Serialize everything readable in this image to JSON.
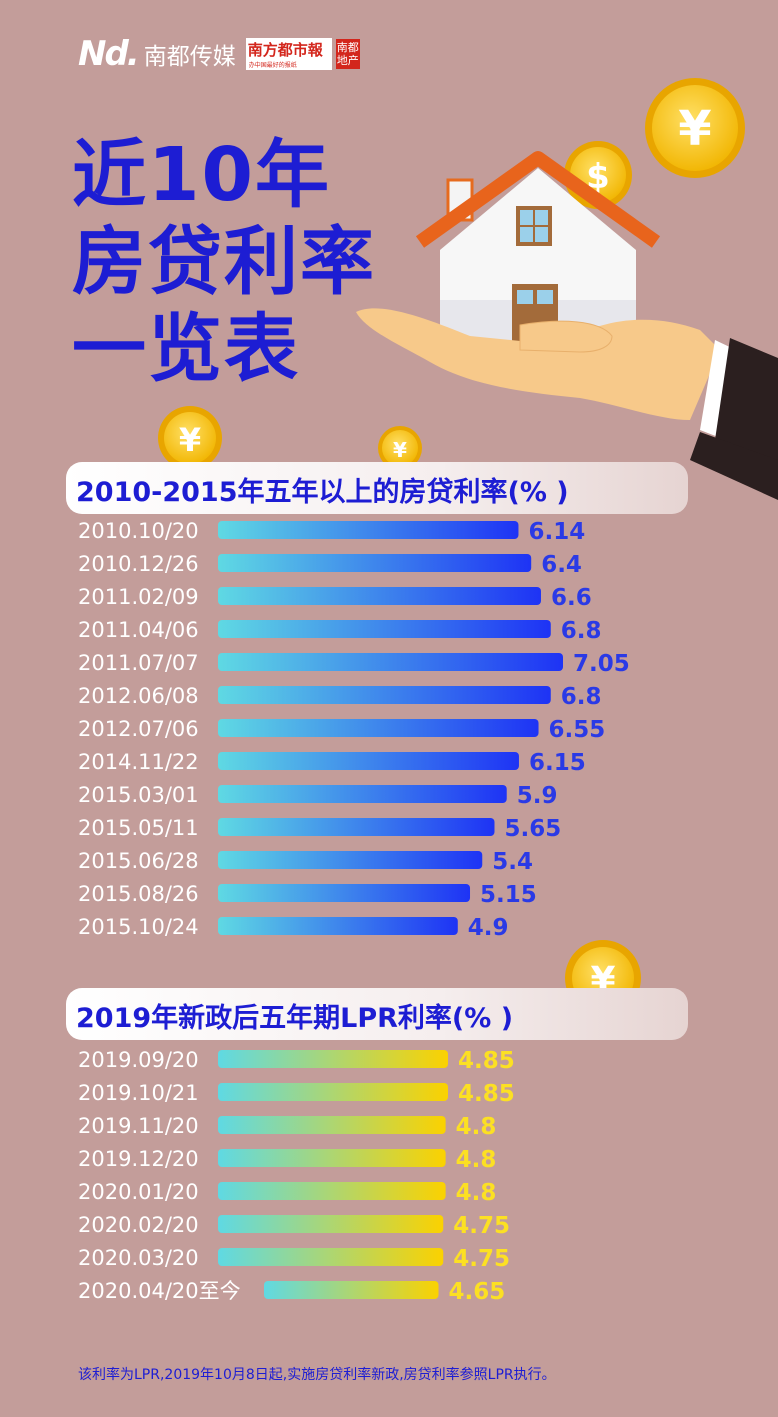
{
  "branding": {
    "nd_logo": "Nd.",
    "media_name": "南都传媒",
    "newspaper_name": "南方都市報",
    "newspaper_slogan": "办中国最好的报纸",
    "estate_seal": "南都地产"
  },
  "title": {
    "line1": "近10年",
    "line2": "房贷利率",
    "line3": "一览表"
  },
  "illustration": {
    "coin_symbols": [
      "¥",
      "$"
    ],
    "icons": [
      "house-icon",
      "hand-icon",
      "coin-icon"
    ]
  },
  "colors": {
    "title": "#1d1dd3",
    "background": "#c39d9a",
    "bar1_start": "#5fd9e3",
    "bar1_end": "#1e33f5",
    "bar2_start": "#5fd9e3",
    "bar2_end": "#fbd200",
    "value1": "#2a3ae6",
    "value2": "#fce023"
  },
  "chart_data": [
    {
      "type": "bar",
      "title": "2010-2015年五年以上的房贷利率(% )",
      "categories": [
        "2010.10/20",
        "2010.12/26",
        "2011.02/09",
        "2011.04/06",
        "2011.07/07",
        "2012.06/08",
        "2012.07/06",
        "2014.11/22",
        "2015.03/01",
        "2015.05/11",
        "2015.06/28",
        "2015.08/26",
        "2015.10/24"
      ],
      "values": [
        6.14,
        6.4,
        6.6,
        6.8,
        7.05,
        6.8,
        6.55,
        6.15,
        5.9,
        5.65,
        5.4,
        5.15,
        4.9
      ],
      "value_labels": [
        "6.14",
        "6.4",
        "6.6",
        "6.8",
        "7.05",
        "6.8",
        "6.55",
        "6.15",
        "5.9",
        "5.65",
        "5.4",
        "5.15",
        "4.9"
      ],
      "orientation": "horizontal"
    },
    {
      "type": "bar",
      "title": "2019年新政后五年期LPR利率(% )",
      "categories": [
        "2019.09/20",
        "2019.10/21",
        "2019.11/20",
        "2019.12/20",
        "2020.01/20",
        "2020.02/20",
        "2020.03/20",
        "2020.04/20至今"
      ],
      "values": [
        4.85,
        4.85,
        4.8,
        4.8,
        4.8,
        4.75,
        4.75,
        4.65
      ],
      "value_labels": [
        "4.85",
        "4.85",
        "4.8",
        "4.8",
        "4.8",
        "4.75",
        "4.75",
        "4.65"
      ],
      "orientation": "horizontal"
    }
  ],
  "footnote": "该利率为LPR,2019年10月8日起,实施房贷利率新政,房贷利率参照LPR执行。"
}
